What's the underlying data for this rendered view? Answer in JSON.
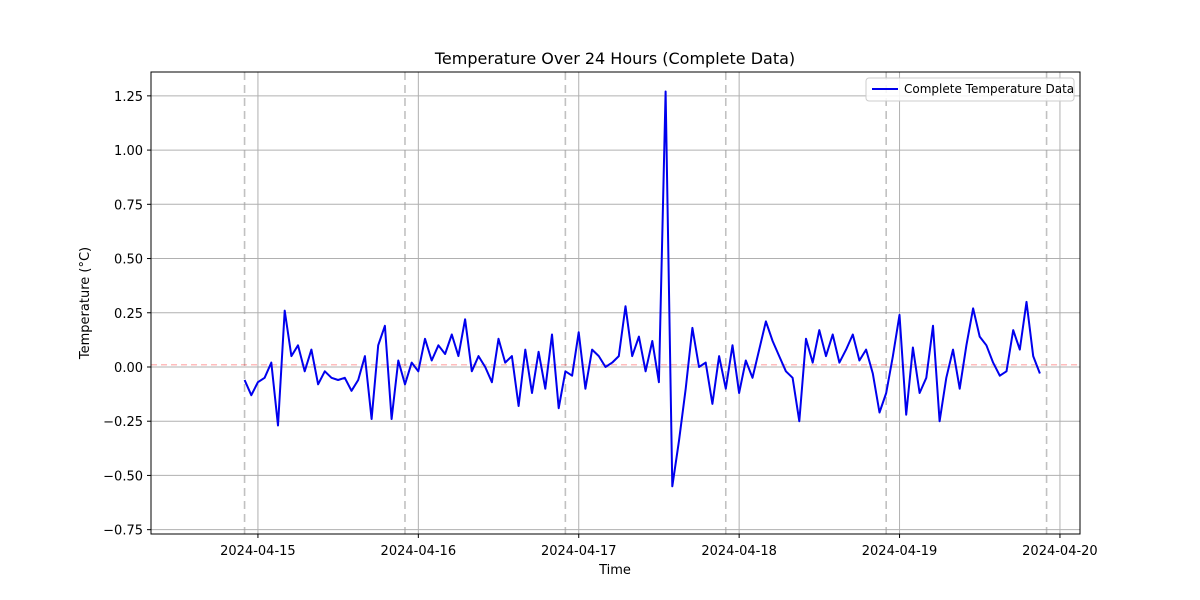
{
  "chart_data": {
    "type": "line",
    "title": "Temperature Over 24 Hours (Complete Data)",
    "xlabel": "Time",
    "ylabel": "Temperature (°C)",
    "x_axis_type": "date",
    "xlim": [
      "2024-04-14 08:00",
      "2024-04-20 03:00"
    ],
    "ylim": [
      -0.77,
      1.36
    ],
    "x_ticks": [
      "2024-04-15",
      "2024-04-16",
      "2024-04-17",
      "2024-04-18",
      "2024-04-19",
      "2024-04-20"
    ],
    "y_ticks": [
      -0.75,
      -0.5,
      -0.25,
      0.0,
      0.25,
      0.5,
      0.75,
      1.0,
      1.25
    ],
    "y_tick_labels": [
      "−0.75",
      "−0.50",
      "−0.25",
      "0.00",
      "0.25",
      "0.50",
      "0.75",
      "1.00",
      "1.25"
    ],
    "grid": true,
    "legend_position": "top-right",
    "day_markers": [
      "2024-04-14 22:00",
      "2024-04-15 22:00",
      "2024-04-16 22:00",
      "2024-04-17 22:00",
      "2024-04-18 22:00",
      "2024-04-19 22:00"
    ],
    "mean_line_value": 0.01,
    "series": [
      {
        "name": "Complete Temperature Data",
        "color": "#0000ee",
        "points": [
          [
            "2024-04-14 22:00",
            -0.06
          ],
          [
            "2024-04-14 23:00",
            -0.13
          ],
          [
            "2024-04-15 00:00",
            -0.07
          ],
          [
            "2024-04-15 01:00",
            -0.05
          ],
          [
            "2024-04-15 02:00",
            0.02
          ],
          [
            "2024-04-15 03:00",
            -0.27
          ],
          [
            "2024-04-15 04:00",
            0.26
          ],
          [
            "2024-04-15 05:00",
            0.05
          ],
          [
            "2024-04-15 06:00",
            0.1
          ],
          [
            "2024-04-15 07:00",
            -0.02
          ],
          [
            "2024-04-15 08:00",
            0.08
          ],
          [
            "2024-04-15 09:00",
            -0.08
          ],
          [
            "2024-04-15 10:00",
            -0.02
          ],
          [
            "2024-04-15 11:00",
            -0.05
          ],
          [
            "2024-04-15 12:00",
            -0.06
          ],
          [
            "2024-04-15 13:00",
            -0.05
          ],
          [
            "2024-04-15 14:00",
            -0.11
          ],
          [
            "2024-04-15 15:00",
            -0.06
          ],
          [
            "2024-04-15 16:00",
            0.05
          ],
          [
            "2024-04-15 17:00",
            -0.24
          ],
          [
            "2024-04-15 18:00",
            0.1
          ],
          [
            "2024-04-15 19:00",
            0.19
          ],
          [
            "2024-04-15 20:00",
            -0.24
          ],
          [
            "2024-04-15 21:00",
            0.03
          ],
          [
            "2024-04-15 22:00",
            -0.08
          ],
          [
            "2024-04-15 23:00",
            0.02
          ],
          [
            "2024-04-16 00:00",
            -0.02
          ],
          [
            "2024-04-16 01:00",
            0.13
          ],
          [
            "2024-04-16 02:00",
            0.03
          ],
          [
            "2024-04-16 03:00",
            0.1
          ],
          [
            "2024-04-16 04:00",
            0.06
          ],
          [
            "2024-04-16 05:00",
            0.15
          ],
          [
            "2024-04-16 06:00",
            0.05
          ],
          [
            "2024-04-16 07:00",
            0.22
          ],
          [
            "2024-04-16 08:00",
            -0.02
          ],
          [
            "2024-04-16 09:00",
            0.05
          ],
          [
            "2024-04-16 10:00",
            0.0
          ],
          [
            "2024-04-16 11:00",
            -0.07
          ],
          [
            "2024-04-16 12:00",
            0.13
          ],
          [
            "2024-04-16 13:00",
            0.02
          ],
          [
            "2024-04-16 14:00",
            0.05
          ],
          [
            "2024-04-16 15:00",
            -0.18
          ],
          [
            "2024-04-16 16:00",
            0.08
          ],
          [
            "2024-04-16 17:00",
            -0.12
          ],
          [
            "2024-04-16 18:00",
            0.07
          ],
          [
            "2024-04-16 19:00",
            -0.1
          ],
          [
            "2024-04-16 20:00",
            0.15
          ],
          [
            "2024-04-16 21:00",
            -0.19
          ],
          [
            "2024-04-16 22:00",
            -0.02
          ],
          [
            "2024-04-16 23:00",
            -0.04
          ],
          [
            "2024-04-17 00:00",
            0.16
          ],
          [
            "2024-04-17 01:00",
            -0.1
          ],
          [
            "2024-04-17 02:00",
            0.08
          ],
          [
            "2024-04-17 03:00",
            0.05
          ],
          [
            "2024-04-17 04:00",
            0.0
          ],
          [
            "2024-04-17 05:00",
            0.02
          ],
          [
            "2024-04-17 06:00",
            0.05
          ],
          [
            "2024-04-17 07:00",
            0.28
          ],
          [
            "2024-04-17 08:00",
            0.05
          ],
          [
            "2024-04-17 09:00",
            0.14
          ],
          [
            "2024-04-17 10:00",
            -0.02
          ],
          [
            "2024-04-17 11:00",
            0.12
          ],
          [
            "2024-04-17 12:00",
            -0.07
          ],
          [
            "2024-04-17 13:00",
            1.27
          ],
          [
            "2024-04-17 14:00",
            -0.55
          ],
          [
            "2024-04-17 15:00",
            -0.34
          ],
          [
            "2024-04-17 16:00",
            -0.1
          ],
          [
            "2024-04-17 17:00",
            0.18
          ],
          [
            "2024-04-17 18:00",
            0.0
          ],
          [
            "2024-04-17 19:00",
            0.02
          ],
          [
            "2024-04-17 20:00",
            -0.17
          ],
          [
            "2024-04-17 21:00",
            0.05
          ],
          [
            "2024-04-17 22:00",
            -0.1
          ],
          [
            "2024-04-17 23:00",
            0.1
          ],
          [
            "2024-04-18 00:00",
            -0.12
          ],
          [
            "2024-04-18 01:00",
            0.03
          ],
          [
            "2024-04-18 02:00",
            -0.05
          ],
          [
            "2024-04-18 03:00",
            0.08
          ],
          [
            "2024-04-18 04:00",
            0.21
          ],
          [
            "2024-04-18 05:00",
            0.12
          ],
          [
            "2024-04-18 06:00",
            0.05
          ],
          [
            "2024-04-18 07:00",
            -0.02
          ],
          [
            "2024-04-18 08:00",
            -0.05
          ],
          [
            "2024-04-18 09:00",
            -0.25
          ],
          [
            "2024-04-18 10:00",
            0.13
          ],
          [
            "2024-04-18 11:00",
            0.02
          ],
          [
            "2024-04-18 12:00",
            0.17
          ],
          [
            "2024-04-18 13:00",
            0.05
          ],
          [
            "2024-04-18 14:00",
            0.15
          ],
          [
            "2024-04-18 15:00",
            0.02
          ],
          [
            "2024-04-18 16:00",
            0.08
          ],
          [
            "2024-04-18 17:00",
            0.15
          ],
          [
            "2024-04-18 18:00",
            0.03
          ],
          [
            "2024-04-18 19:00",
            0.08
          ],
          [
            "2024-04-18 20:00",
            -0.03
          ],
          [
            "2024-04-18 21:00",
            -0.21
          ],
          [
            "2024-04-18 22:00",
            -0.12
          ],
          [
            "2024-04-18 23:00",
            0.05
          ],
          [
            "2024-04-19 00:00",
            0.24
          ],
          [
            "2024-04-19 01:00",
            -0.22
          ],
          [
            "2024-04-19 02:00",
            0.09
          ],
          [
            "2024-04-19 03:00",
            -0.12
          ],
          [
            "2024-04-19 04:00",
            -0.05
          ],
          [
            "2024-04-19 05:00",
            0.19
          ],
          [
            "2024-04-19 06:00",
            -0.25
          ],
          [
            "2024-04-19 07:00",
            -0.05
          ],
          [
            "2024-04-19 08:00",
            0.08
          ],
          [
            "2024-04-19 09:00",
            -0.1
          ],
          [
            "2024-04-19 10:00",
            0.1
          ],
          [
            "2024-04-19 11:00",
            0.27
          ],
          [
            "2024-04-19 12:00",
            0.14
          ],
          [
            "2024-04-19 13:00",
            0.1
          ],
          [
            "2024-04-19 14:00",
            0.02
          ],
          [
            "2024-04-19 15:00",
            -0.04
          ],
          [
            "2024-04-19 16:00",
            -0.02
          ],
          [
            "2024-04-19 17:00",
            0.17
          ],
          [
            "2024-04-19 18:00",
            0.08
          ],
          [
            "2024-04-19 19:00",
            0.3
          ],
          [
            "2024-04-19 20:00",
            0.05
          ],
          [
            "2024-04-19 21:00",
            -0.03
          ]
        ]
      }
    ]
  }
}
